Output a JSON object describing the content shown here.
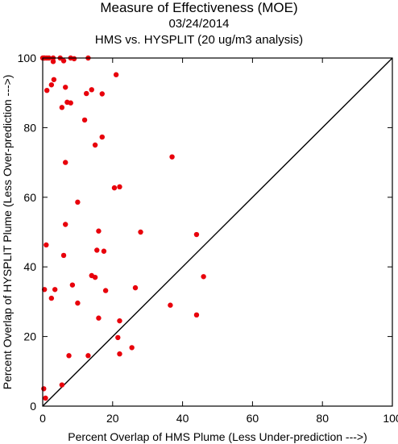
{
  "title": "Measure of Effectiveness (MOE)",
  "date": "03/24/2014",
  "subtitle": "HMS vs. HYSPLIT  (20 ug/m3 analysis)",
  "chart_data": {
    "type": "scatter",
    "xlabel": "Percent Overlap of HMS Plume (Less Under-prediction --->)",
    "ylabel": "Percent Overlap of HYSPLIT Plume (Less Over-prediction --->)",
    "xlim": [
      0,
      100
    ],
    "ylim": [
      0,
      100
    ],
    "xticks": [
      0,
      20,
      40,
      60,
      80,
      100
    ],
    "yticks": [
      0,
      20,
      40,
      60,
      80,
      100
    ],
    "reference_line": "diagonal y = x",
    "marker_color": "#e8000b",
    "points": [
      [
        0,
        100
      ],
      [
        0.3,
        100
      ],
      [
        0.6,
        100
      ],
      [
        1.2,
        100
      ],
      [
        1.8,
        100
      ],
      [
        3,
        100
      ],
      [
        5,
        100
      ],
      [
        8,
        100
      ],
      [
        9,
        99.8
      ],
      [
        13,
        100
      ],
      [
        3,
        99
      ],
      [
        6,
        99.2
      ],
      [
        3.2,
        93.8
      ],
      [
        2.5,
        92.3
      ],
      [
        6.5,
        91.6
      ],
      [
        1.2,
        90.7
      ],
      [
        14,
        90.9
      ],
      [
        12.5,
        89.8
      ],
      [
        17,
        89.7
      ],
      [
        21,
        95.2
      ],
      [
        7,
        87.3
      ],
      [
        8,
        87.1
      ],
      [
        5.5,
        85.8
      ],
      [
        12,
        82.2
      ],
      [
        17,
        77.3
      ],
      [
        15,
        75
      ],
      [
        37,
        71.6
      ],
      [
        6.5,
        70
      ],
      [
        22,
        63
      ],
      [
        20.5,
        62.7
      ],
      [
        10,
        58.6
      ],
      [
        6.5,
        52.2
      ],
      [
        16,
        50.3
      ],
      [
        28,
        50
      ],
      [
        44,
        49.3
      ],
      [
        1,
        46.3
      ],
      [
        15.5,
        44.8
      ],
      [
        17.5,
        44.5
      ],
      [
        6,
        43.3
      ],
      [
        46,
        37.2
      ],
      [
        14,
        37.5
      ],
      [
        15,
        37
      ],
      [
        8.5,
        34.8
      ],
      [
        0.5,
        33.5
      ],
      [
        3.5,
        33.5
      ],
      [
        18,
        33.2
      ],
      [
        26.5,
        34
      ],
      [
        2.5,
        31
      ],
      [
        10,
        29.6
      ],
      [
        36.5,
        29
      ],
      [
        44,
        26.2
      ],
      [
        16,
        25.3
      ],
      [
        22,
        24.5
      ],
      [
        21.5,
        19.7
      ],
      [
        25.5,
        16.8
      ],
      [
        22,
        15
      ],
      [
        13,
        14.5
      ],
      [
        7.5,
        14.5
      ],
      [
        5.5,
        6.1
      ],
      [
        0.3,
        5
      ],
      [
        0.8,
        2.3
      ]
    ]
  }
}
